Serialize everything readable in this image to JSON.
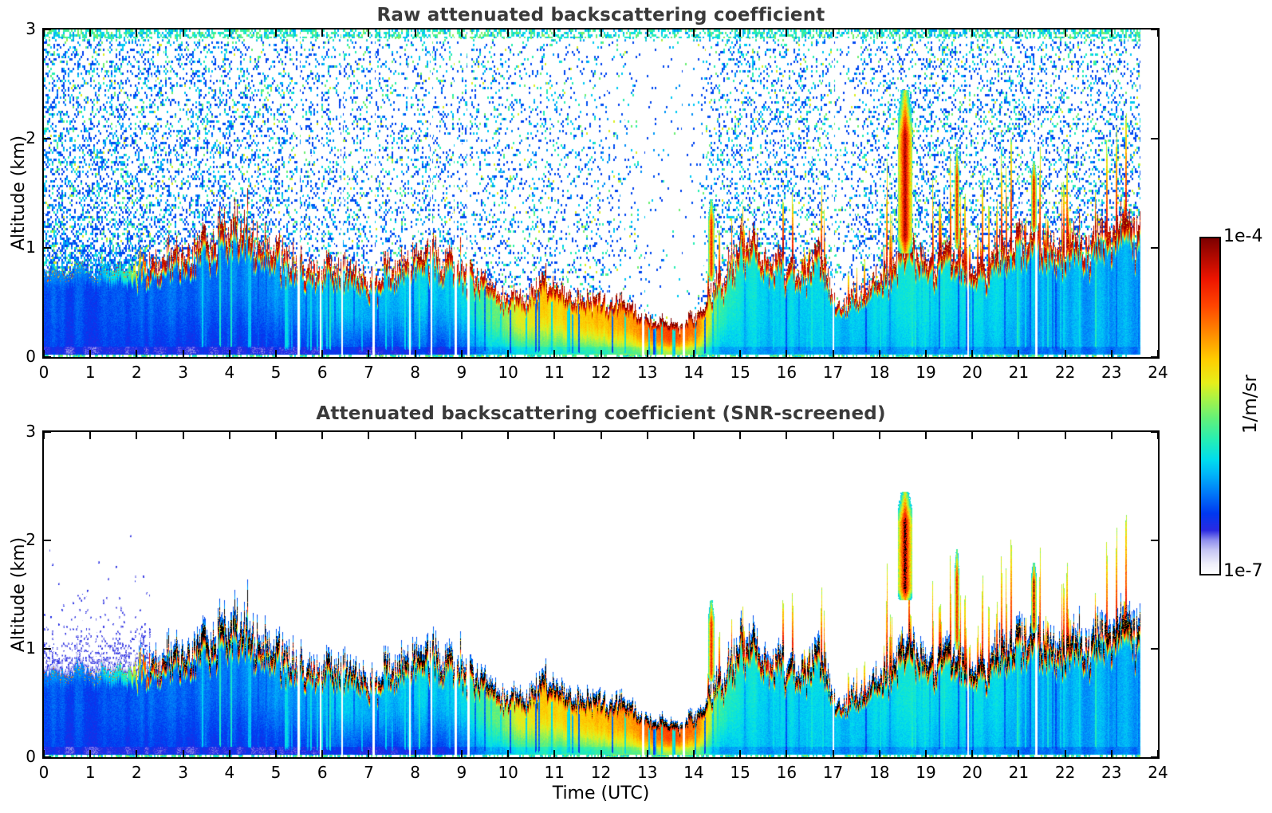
{
  "figure": {
    "background": "#ffffff"
  },
  "panel_raw": {
    "title": "Raw attenuated backscattering coefficient",
    "ylabel": "Altitude (km)"
  },
  "panel_screened": {
    "title": "Attenuated backscattering coefficient (SNR-screened)",
    "ylabel": "Altitude (km)",
    "xlabel": "Time (UTC)"
  },
  "colorbar": {
    "label_top": "1e-4",
    "label_bottom": "1e-7",
    "unit_label": "1/m/sr",
    "stops": [
      [
        0.0,
        "#ffffff"
      ],
      [
        0.03,
        "#eeeefa"
      ],
      [
        0.07,
        "#c6c6f4"
      ],
      [
        0.1,
        "#8f8fee"
      ],
      [
        0.13,
        "#2a2ae2"
      ],
      [
        0.18,
        "#0038f0"
      ],
      [
        0.24,
        "#0078f8"
      ],
      [
        0.3,
        "#00b8f8"
      ],
      [
        0.34,
        "#00ddee"
      ],
      [
        0.4,
        "#26eeb4"
      ],
      [
        0.46,
        "#5ff07c"
      ],
      [
        0.52,
        "#a6f348"
      ],
      [
        0.57,
        "#e6ee1a"
      ],
      [
        0.64,
        "#ffcc00"
      ],
      [
        0.72,
        "#ff8800"
      ],
      [
        0.8,
        "#ff4400"
      ],
      [
        0.88,
        "#ec1400"
      ],
      [
        1.0,
        "#7d0000"
      ]
    ]
  },
  "chart_data": {
    "type": "heatmap",
    "panels": [
      "Raw attenuated backscattering coefficient",
      "Attenuated backscattering coefficient (SNR-screened)"
    ],
    "xlabel": "Time (UTC)",
    "ylabel": "Altitude (km)",
    "x_range_hours": [
      0,
      24
    ],
    "y_range_km": [
      0,
      3
    ],
    "xticks": [
      0,
      1,
      2,
      3,
      4,
      5,
      6,
      7,
      8,
      9,
      10,
      11,
      12,
      13,
      14,
      15,
      16,
      17,
      18,
      19,
      20,
      21,
      22,
      23,
      24
    ],
    "yticks": [
      0,
      1,
      2,
      3
    ],
    "value_scale": "log10",
    "vmin": "1e-7",
    "vmax": "1e-4",
    "units": "1/m/sr",
    "data_end_hour": 23.62,
    "profile_fields": [
      "hour",
      "layer_top_km",
      "cap_intensity",
      "mid_intensity",
      "bottom_intensity",
      "noise_density"
    ],
    "aerosol_layer_profile": [
      [
        0.0,
        0.78,
        0.24,
        0.2,
        0.18,
        0.85
      ],
      [
        1.0,
        0.82,
        0.25,
        0.2,
        0.18,
        0.8
      ],
      [
        1.8,
        0.8,
        0.4,
        0.21,
        0.18,
        0.75
      ],
      [
        2.3,
        0.85,
        0.92,
        0.22,
        0.18,
        0.72
      ],
      [
        3.0,
        1.0,
        0.95,
        0.23,
        0.18,
        0.66
      ],
      [
        4.2,
        1.22,
        0.95,
        0.25,
        0.18,
        0.6
      ],
      [
        5.0,
        1.02,
        0.94,
        0.27,
        0.18,
        0.55
      ],
      [
        5.7,
        0.86,
        0.93,
        0.29,
        0.19,
        0.52
      ],
      [
        6.3,
        0.8,
        0.94,
        0.31,
        0.19,
        0.5
      ],
      [
        7.0,
        0.76,
        0.94,
        0.31,
        0.19,
        0.5
      ],
      [
        7.6,
        0.88,
        0.95,
        0.31,
        0.2,
        0.47
      ],
      [
        8.2,
        0.95,
        0.95,
        0.31,
        0.2,
        0.45
      ],
      [
        9.0,
        0.9,
        0.94,
        0.34,
        0.22,
        0.42
      ],
      [
        9.6,
        0.62,
        0.93,
        0.44,
        0.3,
        0.4
      ],
      [
        10.3,
        0.56,
        0.95,
        0.58,
        0.38,
        0.36
      ],
      [
        10.8,
        0.68,
        0.95,
        0.62,
        0.4,
        0.36
      ],
      [
        11.5,
        0.56,
        0.96,
        0.64,
        0.42,
        0.34
      ],
      [
        12.0,
        0.52,
        0.96,
        0.66,
        0.43,
        0.3
      ],
      [
        12.6,
        0.46,
        0.96,
        0.68,
        0.46,
        0.18
      ],
      [
        13.1,
        0.36,
        1.0,
        0.76,
        0.5,
        0.07
      ],
      [
        13.6,
        0.29,
        1.0,
        0.8,
        0.52,
        0.05
      ],
      [
        14.1,
        0.38,
        1.0,
        0.7,
        0.46,
        0.1
      ],
      [
        14.5,
        0.72,
        0.95,
        0.45,
        0.33,
        0.5
      ],
      [
        15.0,
        1.05,
        0.94,
        0.36,
        0.32,
        0.55
      ],
      [
        15.6,
        0.95,
        0.93,
        0.34,
        0.32,
        0.55
      ],
      [
        16.2,
        0.82,
        0.94,
        0.33,
        0.31,
        0.58
      ],
      [
        16.7,
        0.9,
        0.95,
        0.33,
        0.31,
        0.55
      ],
      [
        17.1,
        0.46,
        0.93,
        0.31,
        0.3,
        0.3
      ],
      [
        17.6,
        0.6,
        0.94,
        0.32,
        0.3,
        0.45
      ],
      [
        18.1,
        0.76,
        0.95,
        0.34,
        0.31,
        0.55
      ],
      [
        18.5,
        1.0,
        0.95,
        0.35,
        0.31,
        0.6
      ],
      [
        19.0,
        0.86,
        0.94,
        0.35,
        0.31,
        0.6
      ],
      [
        19.5,
        1.0,
        0.95,
        0.34,
        0.3,
        0.6
      ],
      [
        20.0,
        0.72,
        0.93,
        0.33,
        0.3,
        0.62
      ],
      [
        20.6,
        0.92,
        0.94,
        0.32,
        0.29,
        0.62
      ],
      [
        21.2,
        1.2,
        0.95,
        0.31,
        0.28,
        0.6
      ],
      [
        21.8,
        1.0,
        0.94,
        0.29,
        0.28,
        0.6
      ],
      [
        22.4,
        1.05,
        0.94,
        0.28,
        0.28,
        0.6
      ],
      [
        23.0,
        1.15,
        0.95,
        0.28,
        0.28,
        0.6
      ],
      [
        23.62,
        1.3,
        0.95,
        0.28,
        0.28,
        0.6
      ]
    ],
    "data_gap_hours": [
      5.48,
      5.95,
      6.42,
      7.1,
      7.88,
      8.34,
      8.86,
      9.14,
      12.9,
      13.78,
      17.0,
      19.9,
      21.37
    ],
    "cloud_features": [
      {
        "name": "elevated-virga-plume",
        "t0": 18.4,
        "t1": 18.68,
        "z_base_km": 0.95,
        "z_base_screened_km": 1.45,
        "z_top_km": 2.45,
        "intensity": 0.97
      },
      {
        "name": "cloud-spike",
        "t0": 19.62,
        "t1": 19.7,
        "z_base_km": 1.0,
        "z_base_screened_km": 1.0,
        "z_top_km": 1.92,
        "intensity": 0.92
      },
      {
        "name": "cloud-spike",
        "t0": 21.28,
        "t1": 21.36,
        "z_base_km": 1.15,
        "z_base_screened_km": 1.15,
        "z_top_km": 1.8,
        "intensity": 0.92
      },
      {
        "name": "cloud-spike",
        "t0": 14.32,
        "t1": 14.42,
        "z_base_km": 0.7,
        "z_base_screened_km": 0.7,
        "z_top_km": 1.45,
        "intensity": 0.9
      }
    ],
    "spike_regions": [
      {
        "t0": 14.25,
        "t1": 16.2,
        "density": 0.22,
        "max_factor": 1.6
      },
      {
        "t0": 16.3,
        "t1": 16.95,
        "density": 0.32,
        "max_factor": 1.65
      },
      {
        "t0": 17.3,
        "t1": 23.62,
        "density": 0.27,
        "max_factor": 1.9
      }
    ]
  }
}
